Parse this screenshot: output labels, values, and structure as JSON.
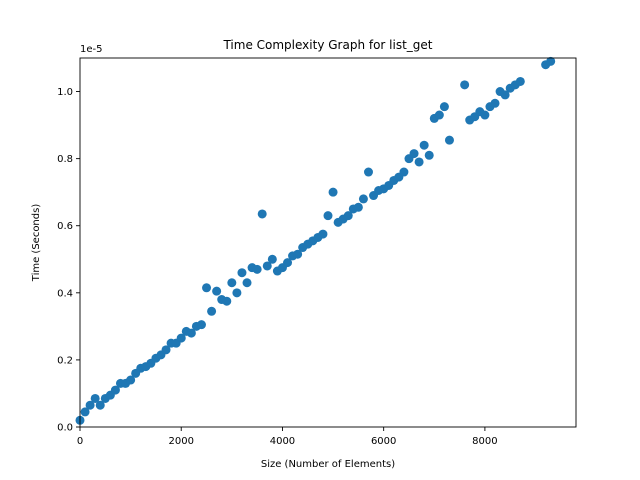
{
  "chart_data": {
    "type": "scatter",
    "title": "Time Complexity Graph for list_get",
    "xlabel": "Size (Number of Elements)",
    "ylabel": "Time (Seconds)",
    "y_offset_label": "1e-5",
    "y_scale": 1e-05,
    "xlim": [
      0,
      9800
    ],
    "ylim": [
      0,
      1.1
    ],
    "xticks": [
      0,
      2000,
      4000,
      6000,
      8000
    ],
    "xtick_labels": [
      "0",
      "2000",
      "4000",
      "6000",
      "8000"
    ],
    "yticks": [
      0,
      0.2,
      0.4,
      0.6,
      0.8,
      1.0
    ],
    "ytick_labels": [
      "0.0",
      "0.2",
      "0.4",
      "0.6",
      "0.8",
      "1.0"
    ],
    "grid": false,
    "color": "#1f77b4",
    "points": [
      [
        0,
        0.02
      ],
      [
        100,
        0.045
      ],
      [
        200,
        0.065
      ],
      [
        300,
        0.085
      ],
      [
        400,
        0.065
      ],
      [
        500,
        0.085
      ],
      [
        600,
        0.095
      ],
      [
        700,
        0.11
      ],
      [
        800,
        0.13
      ],
      [
        900,
        0.13
      ],
      [
        1000,
        0.14
      ],
      [
        1100,
        0.16
      ],
      [
        1200,
        0.175
      ],
      [
        1300,
        0.18
      ],
      [
        1400,
        0.19
      ],
      [
        1500,
        0.205
      ],
      [
        1600,
        0.215
      ],
      [
        1700,
        0.23
      ],
      [
        1800,
        0.25
      ],
      [
        1900,
        0.25
      ],
      [
        2000,
        0.265
      ],
      [
        2100,
        0.285
      ],
      [
        2200,
        0.28
      ],
      [
        2300,
        0.3
      ],
      [
        2400,
        0.305
      ],
      [
        2500,
        0.415
      ],
      [
        2600,
        0.345
      ],
      [
        2700,
        0.405
      ],
      [
        2800,
        0.38
      ],
      [
        2900,
        0.375
      ],
      [
        3000,
        0.43
      ],
      [
        3100,
        0.4
      ],
      [
        3200,
        0.46
      ],
      [
        3300,
        0.43
      ],
      [
        3400,
        0.475
      ],
      [
        3500,
        0.47
      ],
      [
        3600,
        0.635
      ],
      [
        3700,
        0.48
      ],
      [
        3800,
        0.5
      ],
      [
        3900,
        0.465
      ],
      [
        4000,
        0.475
      ],
      [
        4100,
        0.49
      ],
      [
        4200,
        0.51
      ],
      [
        4300,
        0.515
      ],
      [
        4400,
        0.535
      ],
      [
        4500,
        0.545
      ],
      [
        4600,
        0.555
      ],
      [
        4700,
        0.565
      ],
      [
        4800,
        0.575
      ],
      [
        4900,
        0.63
      ],
      [
        5000,
        0.7
      ],
      [
        5100,
        0.61
      ],
      [
        5200,
        0.62
      ],
      [
        5300,
        0.63
      ],
      [
        5400,
        0.65
      ],
      [
        5500,
        0.655
      ],
      [
        5600,
        0.68
      ],
      [
        5700,
        0.76
      ],
      [
        5800,
        0.69
      ],
      [
        5900,
        0.705
      ],
      [
        6000,
        0.71
      ],
      [
        6100,
        0.72
      ],
      [
        6200,
        0.735
      ],
      [
        6300,
        0.745
      ],
      [
        6400,
        0.76
      ],
      [
        6500,
        0.8
      ],
      [
        6600,
        0.815
      ],
      [
        6700,
        0.79
      ],
      [
        6800,
        0.84
      ],
      [
        6900,
        0.81
      ],
      [
        7000,
        0.92
      ],
      [
        7100,
        0.93
      ],
      [
        7200,
        0.955
      ],
      [
        7300,
        0.855
      ],
      [
        7600,
        1.02
      ],
      [
        7700,
        0.915
      ],
      [
        7800,
        0.925
      ],
      [
        7900,
        0.94
      ],
      [
        8000,
        0.93
      ],
      [
        8100,
        0.955
      ],
      [
        8200,
        0.965
      ],
      [
        8300,
        1.0
      ],
      [
        8400,
        0.99
      ],
      [
        8500,
        1.01
      ],
      [
        8600,
        1.02
      ],
      [
        8700,
        1.03
      ],
      [
        9200,
        1.08
      ],
      [
        9300,
        1.09
      ]
    ]
  }
}
